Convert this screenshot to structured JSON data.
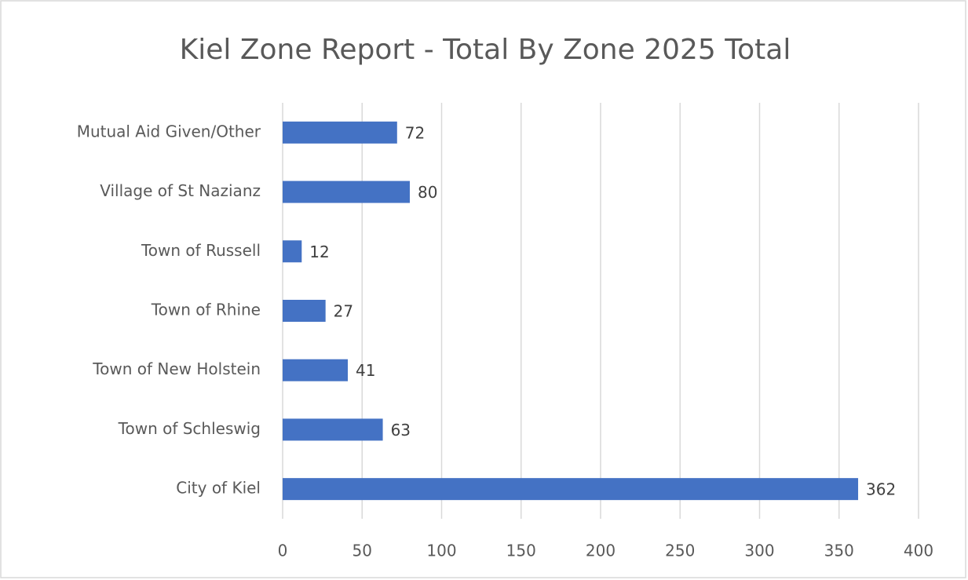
{
  "chart_data": {
    "type": "bar",
    "orientation": "horizontal",
    "title": "Kiel Zone Report - Total By Zone 2025 Total",
    "categories": [
      "Mutual Aid Given/Other",
      "Village of St Nazianz",
      "Town of Russell",
      "Town of Rhine",
      "Town of New Holstein",
      "Town of Schleswig",
      "City of Kiel"
    ],
    "values": [
      72,
      80,
      12,
      27,
      41,
      63,
      362
    ],
    "color": "#4472c4",
    "xlim": [
      0,
      400
    ],
    "xticks": [
      0,
      50,
      100,
      150,
      200,
      250,
      300,
      350,
      400
    ],
    "grid": true
  }
}
